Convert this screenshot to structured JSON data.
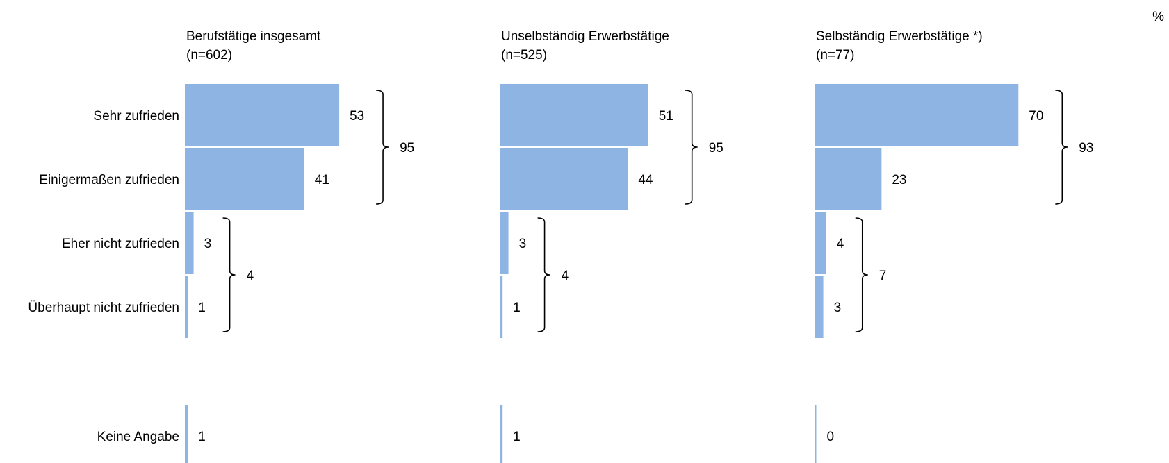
{
  "unit_label": "%",
  "chart_data": {
    "type": "bar",
    "orientation": "horizontal",
    "unit": "%",
    "categories": [
      "Sehr zufrieden",
      "Einigermaßen zufrieden",
      "Eher nicht zufrieden",
      "Überhaupt nicht zufrieden",
      "Keine Angabe"
    ],
    "xlim": [
      0,
      100
    ],
    "grid": false,
    "legend": "none",
    "bar_color": "#8EB4E3",
    "panels": [
      {
        "title": "Berufstätige insgesamt",
        "subtitle": "(n=602)",
        "values": [
          53,
          41,
          3,
          1,
          1
        ],
        "groups": [
          {
            "members": [
              0,
              1
            ],
            "total": 95
          },
          {
            "members": [
              2,
              3
            ],
            "total": 4
          }
        ]
      },
      {
        "title": "Unselbständig Erwerbstätige",
        "subtitle": "(n=525)",
        "values": [
          51,
          44,
          3,
          1,
          1
        ],
        "groups": [
          {
            "members": [
              0,
              1
            ],
            "total": 95
          },
          {
            "members": [
              2,
              3
            ],
            "total": 4
          }
        ]
      },
      {
        "title": "Selbständig Erwerbstätige *)",
        "subtitle": "(n=77)",
        "values": [
          70,
          23,
          4,
          3,
          0
        ],
        "groups": [
          {
            "members": [
              0,
              1
            ],
            "total": 93
          },
          {
            "members": [
              2,
              3
            ],
            "total": 7
          }
        ]
      }
    ]
  }
}
